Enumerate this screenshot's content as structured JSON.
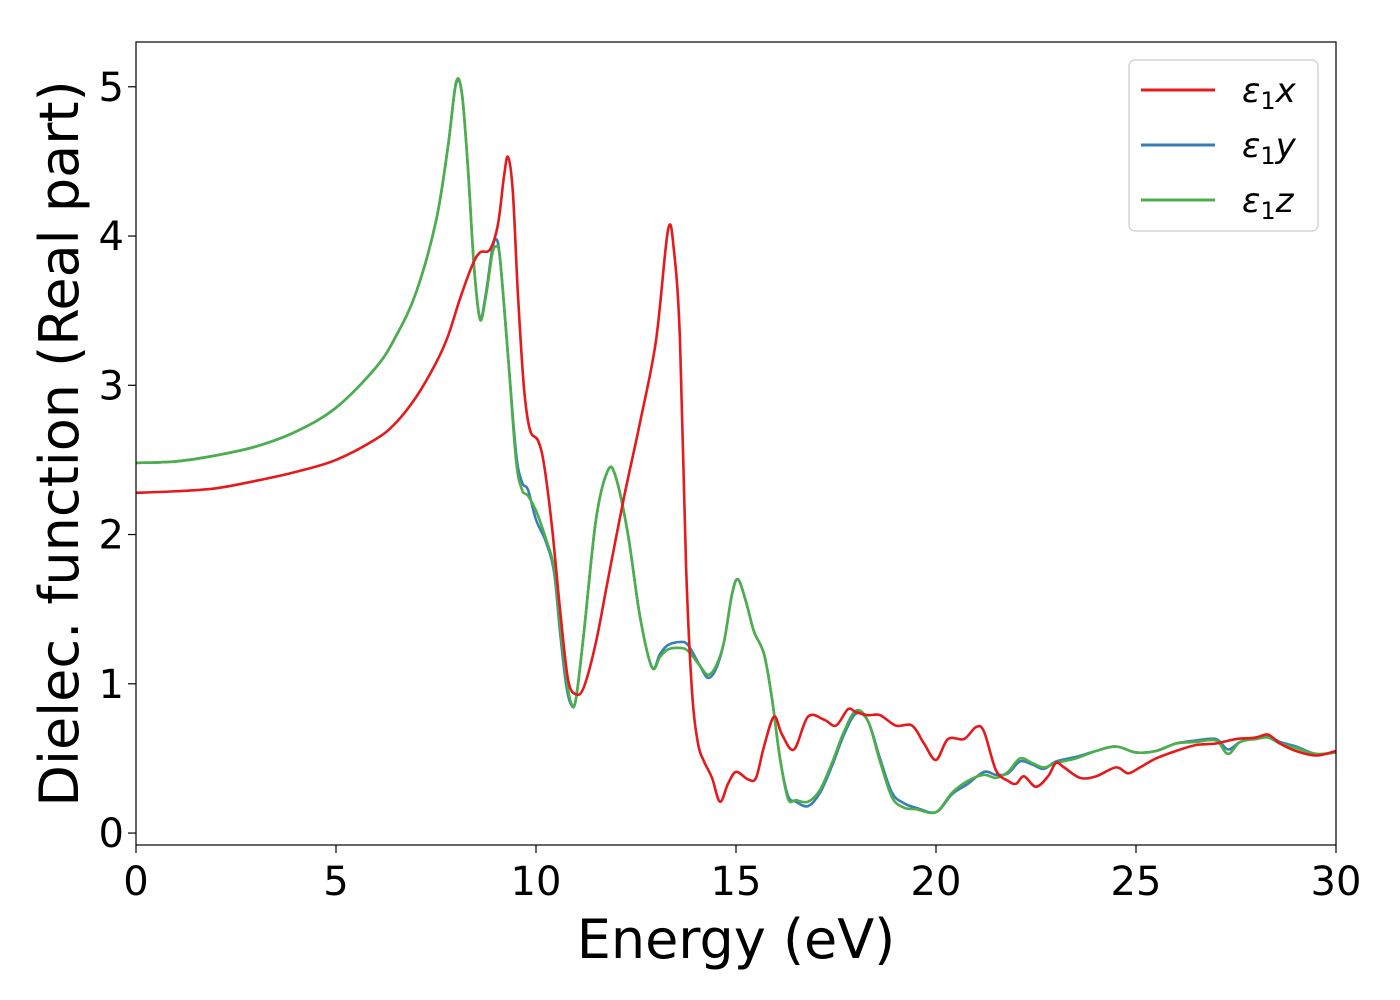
{
  "chart_data": {
    "type": "line",
    "title": "",
    "xlabel": "Energy (eV)",
    "ylabel": "Dielec. function (Real part)",
    "xlim": [
      0,
      30
    ],
    "ylim": [
      -0.08,
      5.3
    ],
    "xticks": [
      "0",
      "5",
      "10",
      "15",
      "20",
      "25",
      "30"
    ],
    "yticks": [
      "0",
      "1",
      "2",
      "3",
      "4",
      "5"
    ],
    "grid": false,
    "legend_position": "top-right",
    "series": [
      {
        "name": "ε1x",
        "legend": {
          "greek": "ε",
          "sub": "1",
          "var": "x"
        },
        "color": "#e41a1c",
        "points": [
          [
            0,
            2.28
          ],
          [
            1,
            2.29
          ],
          [
            2,
            2.31
          ],
          [
            3,
            2.36
          ],
          [
            4,
            2.42
          ],
          [
            5,
            2.5
          ],
          [
            6,
            2.64
          ],
          [
            6.5,
            2.75
          ],
          [
            7,
            2.92
          ],
          [
            7.5,
            3.15
          ],
          [
            7.8,
            3.33
          ],
          [
            8.1,
            3.58
          ],
          [
            8.4,
            3.8
          ],
          [
            8.6,
            3.89
          ],
          [
            8.85,
            3.91
          ],
          [
            9.05,
            4.08
          ],
          [
            9.2,
            4.4
          ],
          [
            9.3,
            4.53
          ],
          [
            9.42,
            4.3
          ],
          [
            9.55,
            3.6
          ],
          [
            9.7,
            2.98
          ],
          [
            9.85,
            2.7
          ],
          [
            10.05,
            2.63
          ],
          [
            10.2,
            2.47
          ],
          [
            10.4,
            2.05
          ],
          [
            10.6,
            1.5
          ],
          [
            10.8,
            1.03
          ],
          [
            11.0,
            0.93
          ],
          [
            11.2,
            0.98
          ],
          [
            11.5,
            1.28
          ],
          [
            11.8,
            1.7
          ],
          [
            12.2,
            2.25
          ],
          [
            12.6,
            2.75
          ],
          [
            13.0,
            3.3
          ],
          [
            13.3,
            4.04
          ],
          [
            13.45,
            3.9
          ],
          [
            13.6,
            3.3
          ],
          [
            13.75,
            1.8
          ],
          [
            13.9,
            0.95
          ],
          [
            14.05,
            0.6
          ],
          [
            14.2,
            0.48
          ],
          [
            14.4,
            0.37
          ],
          [
            14.6,
            0.21
          ],
          [
            14.8,
            0.33
          ],
          [
            15.0,
            0.41
          ],
          [
            15.3,
            0.36
          ],
          [
            15.5,
            0.37
          ],
          [
            15.7,
            0.58
          ],
          [
            15.95,
            0.78
          ],
          [
            16.15,
            0.66
          ],
          [
            16.45,
            0.56
          ],
          [
            16.8,
            0.78
          ],
          [
            17.2,
            0.76
          ],
          [
            17.5,
            0.72
          ],
          [
            17.8,
            0.83
          ],
          [
            18.0,
            0.81
          ],
          [
            18.3,
            0.79
          ],
          [
            18.6,
            0.79
          ],
          [
            19.0,
            0.72
          ],
          [
            19.4,
            0.72
          ],
          [
            19.7,
            0.6
          ],
          [
            20.0,
            0.49
          ],
          [
            20.3,
            0.63
          ],
          [
            20.7,
            0.63
          ],
          [
            21.0,
            0.71
          ],
          [
            21.2,
            0.68
          ],
          [
            21.5,
            0.42
          ],
          [
            21.8,
            0.35
          ],
          [
            22.0,
            0.33
          ],
          [
            22.2,
            0.38
          ],
          [
            22.5,
            0.31
          ],
          [
            22.8,
            0.38
          ],
          [
            23.0,
            0.47
          ],
          [
            23.2,
            0.44
          ],
          [
            23.6,
            0.37
          ],
          [
            24.0,
            0.38
          ],
          [
            24.5,
            0.44
          ],
          [
            24.8,
            0.4
          ],
          [
            25.1,
            0.44
          ],
          [
            25.5,
            0.5
          ],
          [
            26.0,
            0.55
          ],
          [
            26.5,
            0.59
          ],
          [
            27.0,
            0.6
          ],
          [
            27.5,
            0.63
          ],
          [
            28.0,
            0.64
          ],
          [
            28.3,
            0.66
          ],
          [
            28.6,
            0.6
          ],
          [
            29.0,
            0.55
          ],
          [
            29.5,
            0.52
          ],
          [
            30.0,
            0.55
          ]
        ]
      },
      {
        "name": "ε1y",
        "legend": {
          "greek": "ε",
          "sub": "1",
          "var": "y"
        },
        "color": "#377eb8",
        "points": [
          [
            0,
            2.48
          ],
          [
            1,
            2.49
          ],
          [
            2,
            2.53
          ],
          [
            3,
            2.59
          ],
          [
            4,
            2.69
          ],
          [
            5,
            2.85
          ],
          [
            6,
            3.12
          ],
          [
            6.5,
            3.33
          ],
          [
            7,
            3.62
          ],
          [
            7.5,
            4.1
          ],
          [
            7.8,
            4.6
          ],
          [
            8.0,
            5.02
          ],
          [
            8.15,
            4.95
          ],
          [
            8.3,
            4.45
          ],
          [
            8.45,
            3.8
          ],
          [
            8.6,
            3.45
          ],
          [
            8.75,
            3.62
          ],
          [
            8.9,
            3.9
          ],
          [
            9.0,
            3.98
          ],
          [
            9.1,
            3.85
          ],
          [
            9.3,
            3.2
          ],
          [
            9.5,
            2.55
          ],
          [
            9.65,
            2.35
          ],
          [
            9.8,
            2.3
          ],
          [
            10.0,
            2.1
          ],
          [
            10.25,
            1.95
          ],
          [
            10.45,
            1.75
          ],
          [
            10.6,
            1.35
          ],
          [
            10.75,
            1.0
          ],
          [
            10.88,
            0.86
          ],
          [
            11.0,
            0.9
          ],
          [
            11.2,
            1.35
          ],
          [
            11.5,
            2.1
          ],
          [
            11.8,
            2.43
          ],
          [
            12.0,
            2.38
          ],
          [
            12.3,
            2.0
          ],
          [
            12.6,
            1.45
          ],
          [
            12.9,
            1.11
          ],
          [
            13.1,
            1.2
          ],
          [
            13.3,
            1.26
          ],
          [
            13.6,
            1.28
          ],
          [
            13.8,
            1.26
          ],
          [
            14.1,
            1.12
          ],
          [
            14.3,
            1.04
          ],
          [
            14.5,
            1.1
          ],
          [
            14.7,
            1.28
          ],
          [
            14.9,
            1.6
          ],
          [
            15.05,
            1.7
          ],
          [
            15.25,
            1.55
          ],
          [
            15.45,
            1.35
          ],
          [
            15.7,
            1.2
          ],
          [
            15.9,
            0.9
          ],
          [
            16.1,
            0.5
          ],
          [
            16.3,
            0.25
          ],
          [
            16.5,
            0.21
          ],
          [
            16.8,
            0.18
          ],
          [
            17.1,
            0.27
          ],
          [
            17.4,
            0.45
          ],
          [
            17.7,
            0.66
          ],
          [
            18.0,
            0.8
          ],
          [
            18.3,
            0.75
          ],
          [
            18.6,
            0.5
          ],
          [
            18.9,
            0.27
          ],
          [
            19.2,
            0.2
          ],
          [
            19.5,
            0.17
          ],
          [
            20.0,
            0.14
          ],
          [
            20.4,
            0.26
          ],
          [
            20.8,
            0.33
          ],
          [
            21.2,
            0.41
          ],
          [
            21.5,
            0.39
          ],
          [
            21.8,
            0.4
          ],
          [
            22.1,
            0.48
          ],
          [
            22.4,
            0.46
          ],
          [
            22.7,
            0.43
          ],
          [
            23.0,
            0.48
          ],
          [
            23.5,
            0.51
          ],
          [
            24.0,
            0.55
          ],
          [
            24.5,
            0.58
          ],
          [
            25.0,
            0.54
          ],
          [
            25.5,
            0.55
          ],
          [
            26.0,
            0.6
          ],
          [
            26.5,
            0.62
          ],
          [
            27.0,
            0.63
          ],
          [
            27.3,
            0.56
          ],
          [
            27.6,
            0.61
          ],
          [
            28.0,
            0.64
          ],
          [
            28.3,
            0.65
          ],
          [
            28.6,
            0.61
          ],
          [
            29.0,
            0.58
          ],
          [
            29.5,
            0.53
          ],
          [
            30.0,
            0.54
          ]
        ]
      },
      {
        "name": "ε1z",
        "legend": {
          "greek": "ε",
          "sub": "1",
          "var": "z"
        },
        "color": "#4daf4a",
        "points": [
          [
            0,
            2.48
          ],
          [
            1,
            2.49
          ],
          [
            2,
            2.53
          ],
          [
            3,
            2.59
          ],
          [
            4,
            2.69
          ],
          [
            5,
            2.85
          ],
          [
            6,
            3.12
          ],
          [
            6.5,
            3.33
          ],
          [
            7,
            3.62
          ],
          [
            7.5,
            4.1
          ],
          [
            7.8,
            4.6
          ],
          [
            8.0,
            5.03
          ],
          [
            8.15,
            4.95
          ],
          [
            8.3,
            4.45
          ],
          [
            8.45,
            3.8
          ],
          [
            8.6,
            3.44
          ],
          [
            8.75,
            3.6
          ],
          [
            8.9,
            3.87
          ],
          [
            9.0,
            3.93
          ],
          [
            9.1,
            3.85
          ],
          [
            9.3,
            3.2
          ],
          [
            9.5,
            2.5
          ],
          [
            9.65,
            2.3
          ],
          [
            9.8,
            2.26
          ],
          [
            10.0,
            2.16
          ],
          [
            10.25,
            1.97
          ],
          [
            10.45,
            1.78
          ],
          [
            10.6,
            1.4
          ],
          [
            10.75,
            1.05
          ],
          [
            10.88,
            0.87
          ],
          [
            11.0,
            0.9
          ],
          [
            11.2,
            1.35
          ],
          [
            11.5,
            2.1
          ],
          [
            11.8,
            2.43
          ],
          [
            12.0,
            2.38
          ],
          [
            12.3,
            2.0
          ],
          [
            12.6,
            1.45
          ],
          [
            12.9,
            1.11
          ],
          [
            13.1,
            1.18
          ],
          [
            13.3,
            1.23
          ],
          [
            13.6,
            1.24
          ],
          [
            13.8,
            1.22
          ],
          [
            14.1,
            1.12
          ],
          [
            14.3,
            1.06
          ],
          [
            14.5,
            1.12
          ],
          [
            14.7,
            1.28
          ],
          [
            14.9,
            1.6
          ],
          [
            15.05,
            1.7
          ],
          [
            15.25,
            1.55
          ],
          [
            15.45,
            1.35
          ],
          [
            15.7,
            1.2
          ],
          [
            15.9,
            0.9
          ],
          [
            16.1,
            0.5
          ],
          [
            16.3,
            0.23
          ],
          [
            16.5,
            0.22
          ],
          [
            16.8,
            0.21
          ],
          [
            17.1,
            0.29
          ],
          [
            17.4,
            0.47
          ],
          [
            17.7,
            0.68
          ],
          [
            18.0,
            0.82
          ],
          [
            18.3,
            0.75
          ],
          [
            18.6,
            0.48
          ],
          [
            18.9,
            0.24
          ],
          [
            19.2,
            0.17
          ],
          [
            19.5,
            0.16
          ],
          [
            20.0,
            0.14
          ],
          [
            20.4,
            0.27
          ],
          [
            20.8,
            0.35
          ],
          [
            21.2,
            0.39
          ],
          [
            21.5,
            0.37
          ],
          [
            21.8,
            0.41
          ],
          [
            22.1,
            0.5
          ],
          [
            22.4,
            0.47
          ],
          [
            22.7,
            0.44
          ],
          [
            23.0,
            0.47
          ],
          [
            23.5,
            0.5
          ],
          [
            24.0,
            0.55
          ],
          [
            24.5,
            0.58
          ],
          [
            25.0,
            0.54
          ],
          [
            25.5,
            0.55
          ],
          [
            26.0,
            0.6
          ],
          [
            26.5,
            0.61
          ],
          [
            27.0,
            0.62
          ],
          [
            27.3,
            0.53
          ],
          [
            27.6,
            0.61
          ],
          [
            28.0,
            0.63
          ],
          [
            28.3,
            0.64
          ],
          [
            28.6,
            0.6
          ],
          [
            29.0,
            0.57
          ],
          [
            29.5,
            0.53
          ],
          [
            30.0,
            0.54
          ]
        ]
      }
    ]
  }
}
